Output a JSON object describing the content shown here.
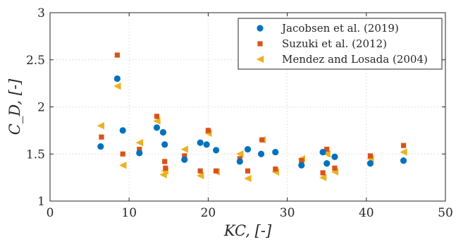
{
  "chart_data": {
    "type": "scatter",
    "xlabel": "KC, [-]",
    "ylabel": "C_D, [-]",
    "xlim": [
      0,
      50
    ],
    "ylim": [
      1,
      3
    ],
    "xticks": [
      0,
      10,
      20,
      30,
      40,
      50
    ],
    "yticks": [
      1,
      1.5,
      2,
      2.5,
      3
    ],
    "xtick_labels": [
      "0",
      "10",
      "20",
      "30",
      "40",
      "50"
    ],
    "ytick_labels": [
      "1",
      "1.5",
      "2",
      "2.5",
      "3"
    ],
    "grid": true,
    "grid_style": "dotted",
    "legend_position": "top-right",
    "series": [
      {
        "name": "Jacobsen et al. (2019)",
        "marker": "circle",
        "color": "#0072BD",
        "x": [
          6.4,
          8.5,
          9.2,
          11.3,
          13.5,
          14.3,
          14.5,
          17.0,
          19.0,
          19.8,
          21.0,
          24.0,
          25.0,
          26.7,
          28.5,
          31.8,
          34.5,
          35.0,
          36.0,
          40.5,
          44.7
        ],
        "y": [
          1.58,
          2.3,
          1.75,
          1.51,
          1.78,
          1.73,
          1.6,
          1.44,
          1.62,
          1.6,
          1.54,
          1.42,
          1.55,
          1.5,
          1.52,
          1.38,
          1.52,
          1.4,
          1.47,
          1.4,
          1.43
        ]
      },
      {
        "name": "Suzuki et al. (2012)",
        "marker": "square",
        "color": "#D95319",
        "x": [
          6.5,
          8.5,
          9.2,
          11.3,
          13.5,
          14.5,
          14.6,
          17.0,
          19.0,
          20.0,
          21.0,
          24.0,
          25.0,
          26.8,
          28.5,
          31.8,
          34.5,
          35.0,
          36.0,
          40.5,
          44.7
        ],
        "y": [
          1.68,
          2.55,
          1.5,
          1.55,
          1.9,
          1.42,
          1.35,
          1.48,
          1.32,
          1.75,
          1.32,
          1.45,
          1.32,
          1.65,
          1.34,
          1.43,
          1.3,
          1.55,
          1.35,
          1.48,
          1.59
        ]
      },
      {
        "name": "Mendez and Losada (2004)",
        "marker": "triangle-left",
        "color": "#EDB120",
        "x": [
          6.4,
          8.5,
          9.2,
          11.3,
          13.5,
          14.3,
          14.5,
          17.0,
          19.0,
          20.0,
          21.0,
          24.0,
          25.0,
          26.8,
          28.5,
          31.8,
          34.5,
          35.0,
          36.0,
          40.5,
          44.7
        ],
        "y": [
          1.8,
          2.22,
          1.38,
          1.62,
          1.85,
          1.28,
          1.32,
          1.55,
          1.27,
          1.72,
          1.31,
          1.5,
          1.24,
          1.65,
          1.31,
          1.45,
          1.25,
          1.5,
          1.31,
          1.45,
          1.52
        ]
      }
    ]
  }
}
